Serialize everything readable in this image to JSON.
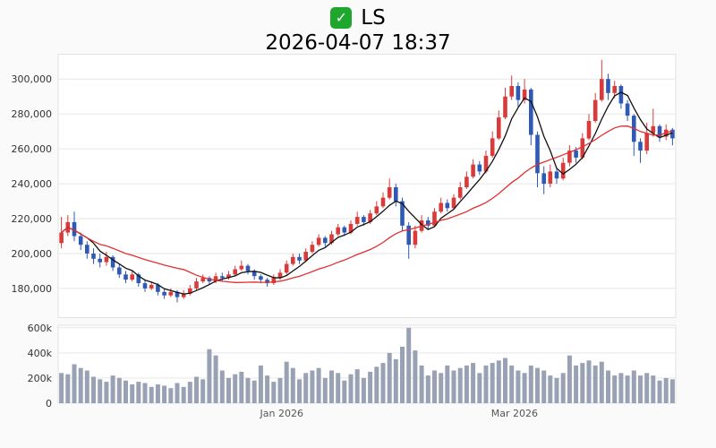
{
  "page": {
    "background": "#fafafa"
  },
  "header": {
    "check_badge": {
      "symbol": "✓",
      "color": "#1fa62c"
    },
    "title": "LS",
    "datetime": "2026-04-07 18:37"
  },
  "chart_data": {
    "type": "candlestick",
    "symbol": "LS",
    "as_of": "2026-04-07 18:37",
    "panes": [
      "price",
      "volume"
    ],
    "price_axis": {
      "min": 163000,
      "max": 314500,
      "ticks": [
        180000,
        200000,
        220000,
        240000,
        260000,
        280000,
        300000
      ],
      "tick_labels": [
        "180,000",
        "200,000",
        "220,000",
        "240,000",
        "260,000",
        "280,000",
        "300,000"
      ]
    },
    "volume_axis": {
      "min": 0,
      "max": 620000,
      "ticks": [
        0,
        200000,
        400000,
        600000
      ],
      "tick_labels": [
        "0",
        "200k",
        "400k",
        "600k"
      ]
    },
    "x_axis": {
      "labels": [
        {
          "text": "Jan 2026",
          "pos": 0.362
        },
        {
          "text": "Mar 2026",
          "pos": 0.739
        }
      ]
    },
    "style": {
      "up_color": "#d93b3b",
      "down_color": "#2e59b5",
      "ma_fast_color": "#111111",
      "ma_slow_color": "#e03131",
      "volume_color": "#99a2b4",
      "grid_color": "#e6e6e6",
      "pane_border_color": "#e2e2e2",
      "pane_background": "#ffffff",
      "axis_text_color": "#333333",
      "month_text_color": "#555555"
    },
    "moving_averages": [
      {
        "name": "MA5",
        "window": 5
      },
      {
        "name": "MA20",
        "window": 20
      }
    ],
    "candle_fields": [
      "open",
      "high",
      "low",
      "close",
      "volume"
    ],
    "candles": [
      [
        206000,
        221000,
        203000,
        212000,
        240000
      ],
      [
        212000,
        222000,
        210000,
        218000,
        230000
      ],
      [
        218000,
        224000,
        207000,
        210000,
        310000
      ],
      [
        210000,
        212000,
        202000,
        205000,
        280000
      ],
      [
        205000,
        207000,
        197000,
        200000,
        260000
      ],
      [
        200000,
        203000,
        194000,
        197000,
        210000
      ],
      [
        197000,
        200000,
        192000,
        195000,
        190000
      ],
      [
        195000,
        201000,
        193000,
        198000,
        170000
      ],
      [
        198000,
        199000,
        190000,
        192000,
        220000
      ],
      [
        192000,
        194000,
        186000,
        188000,
        200000
      ],
      [
        188000,
        190000,
        183000,
        185000,
        180000
      ],
      [
        185000,
        190000,
        184000,
        188000,
        150000
      ],
      [
        188000,
        189000,
        181000,
        183000,
        170000
      ],
      [
        183000,
        185000,
        178000,
        180000,
        160000
      ],
      [
        180000,
        184000,
        179000,
        182000,
        130000
      ],
      [
        182000,
        183000,
        176000,
        178000,
        150000
      ],
      [
        178000,
        180000,
        174000,
        176000,
        140000
      ],
      [
        176000,
        180000,
        175000,
        178000,
        120000
      ],
      [
        178000,
        179000,
        172000,
        175000,
        160000
      ],
      [
        175000,
        179000,
        174000,
        177000,
        130000
      ],
      [
        177000,
        182000,
        176000,
        180000,
        170000
      ],
      [
        180000,
        186000,
        179000,
        184000,
        210000
      ],
      [
        184000,
        188000,
        183000,
        186000,
        190000
      ],
      [
        186000,
        187000,
        182000,
        184000,
        430000
      ],
      [
        184000,
        189000,
        183000,
        187000,
        380000
      ],
      [
        187000,
        189000,
        184000,
        186000,
        260000
      ],
      [
        186000,
        190000,
        185000,
        188000,
        200000
      ],
      [
        188000,
        193000,
        187000,
        191000,
        230000
      ],
      [
        191000,
        196000,
        190000,
        193000,
        250000
      ],
      [
        193000,
        194000,
        188000,
        190000,
        200000
      ],
      [
        190000,
        191000,
        185000,
        187000,
        180000
      ],
      [
        187000,
        188000,
        183000,
        185000,
        300000
      ],
      [
        185000,
        186000,
        181000,
        183000,
        220000
      ],
      [
        183000,
        188000,
        182000,
        186000,
        170000
      ],
      [
        186000,
        191000,
        185000,
        189000,
        200000
      ],
      [
        189000,
        196000,
        188000,
        194000,
        330000
      ],
      [
        194000,
        200000,
        193000,
        198000,
        280000
      ],
      [
        198000,
        200000,
        194000,
        196000,
        190000
      ],
      [
        196000,
        203000,
        195000,
        201000,
        240000
      ],
      [
        201000,
        207000,
        200000,
        205000,
        260000
      ],
      [
        205000,
        211000,
        204000,
        209000,
        280000
      ],
      [
        209000,
        210000,
        204000,
        206000,
        200000
      ],
      [
        206000,
        213000,
        205000,
        211000,
        260000
      ],
      [
        211000,
        217000,
        210000,
        215000,
        240000
      ],
      [
        215000,
        216000,
        210000,
        212000,
        180000
      ],
      [
        212000,
        219000,
        211000,
        217000,
        230000
      ],
      [
        217000,
        224000,
        216000,
        221000,
        270000
      ],
      [
        221000,
        222000,
        216000,
        218000,
        200000
      ],
      [
        218000,
        225000,
        217000,
        223000,
        250000
      ],
      [
        223000,
        230000,
        222000,
        227000,
        290000
      ],
      [
        227000,
        235000,
        226000,
        232000,
        320000
      ],
      [
        232000,
        243000,
        231000,
        238000,
        400000
      ],
      [
        238000,
        240000,
        227000,
        230000,
        350000
      ],
      [
        230000,
        232000,
        213000,
        216000,
        450000
      ],
      [
        216000,
        218000,
        197000,
        205000,
        600000
      ],
      [
        205000,
        216000,
        203000,
        213000,
        420000
      ],
      [
        213000,
        222000,
        212000,
        219000,
        300000
      ],
      [
        219000,
        221000,
        214000,
        216000,
        220000
      ],
      [
        216000,
        226000,
        215000,
        224000,
        260000
      ],
      [
        224000,
        232000,
        223000,
        229000,
        240000
      ],
      [
        229000,
        231000,
        224000,
        226000,
        300000
      ],
      [
        226000,
        234000,
        225000,
        232000,
        260000
      ],
      [
        232000,
        241000,
        231000,
        238000,
        280000
      ],
      [
        238000,
        247000,
        237000,
        244000,
        300000
      ],
      [
        244000,
        254000,
        243000,
        251000,
        320000
      ],
      [
        251000,
        253000,
        245000,
        247000,
        240000
      ],
      [
        247000,
        259000,
        246000,
        256000,
        300000
      ],
      [
        256000,
        270000,
        255000,
        266000,
        320000
      ],
      [
        266000,
        282000,
        265000,
        278000,
        340000
      ],
      [
        278000,
        295000,
        277000,
        290000,
        360000
      ],
      [
        290000,
        302000,
        288000,
        296000,
        300000
      ],
      [
        296000,
        298000,
        284000,
        288000,
        260000
      ],
      [
        288000,
        300000,
        286000,
        294000,
        240000
      ],
      [
        294000,
        295000,
        262000,
        268000,
        300000
      ],
      [
        268000,
        270000,
        238000,
        246000,
        280000
      ],
      [
        246000,
        250000,
        234000,
        240000,
        260000
      ],
      [
        240000,
        251000,
        238000,
        247000,
        220000
      ],
      [
        247000,
        249000,
        240000,
        243000,
        200000
      ],
      [
        243000,
        255000,
        242000,
        252000,
        240000
      ],
      [
        252000,
        262000,
        250000,
        259000,
        380000
      ],
      [
        259000,
        261000,
        252000,
        255000,
        300000
      ],
      [
        255000,
        269000,
        254000,
        266000,
        320000
      ],
      [
        266000,
        280000,
        265000,
        276000,
        340000
      ],
      [
        276000,
        292000,
        275000,
        288000,
        300000
      ],
      [
        288000,
        311000,
        287000,
        300000,
        330000
      ],
      [
        300000,
        303000,
        288000,
        292000,
        260000
      ],
      [
        292000,
        299000,
        289000,
        296000,
        220000
      ],
      [
        296000,
        297000,
        283000,
        286000,
        240000
      ],
      [
        286000,
        288000,
        276000,
        279000,
        220000
      ],
      [
        279000,
        280000,
        256000,
        264000,
        260000
      ],
      [
        264000,
        266000,
        252000,
        259000,
        220000
      ],
      [
        259000,
        275000,
        257000,
        269000,
        240000
      ],
      [
        269000,
        283000,
        267000,
        273000,
        220000
      ],
      [
        273000,
        274000,
        264000,
        267000,
        180000
      ],
      [
        267000,
        274000,
        265000,
        271000,
        200000
      ],
      [
        271000,
        272000,
        262000,
        266000,
        190000
      ]
    ]
  }
}
